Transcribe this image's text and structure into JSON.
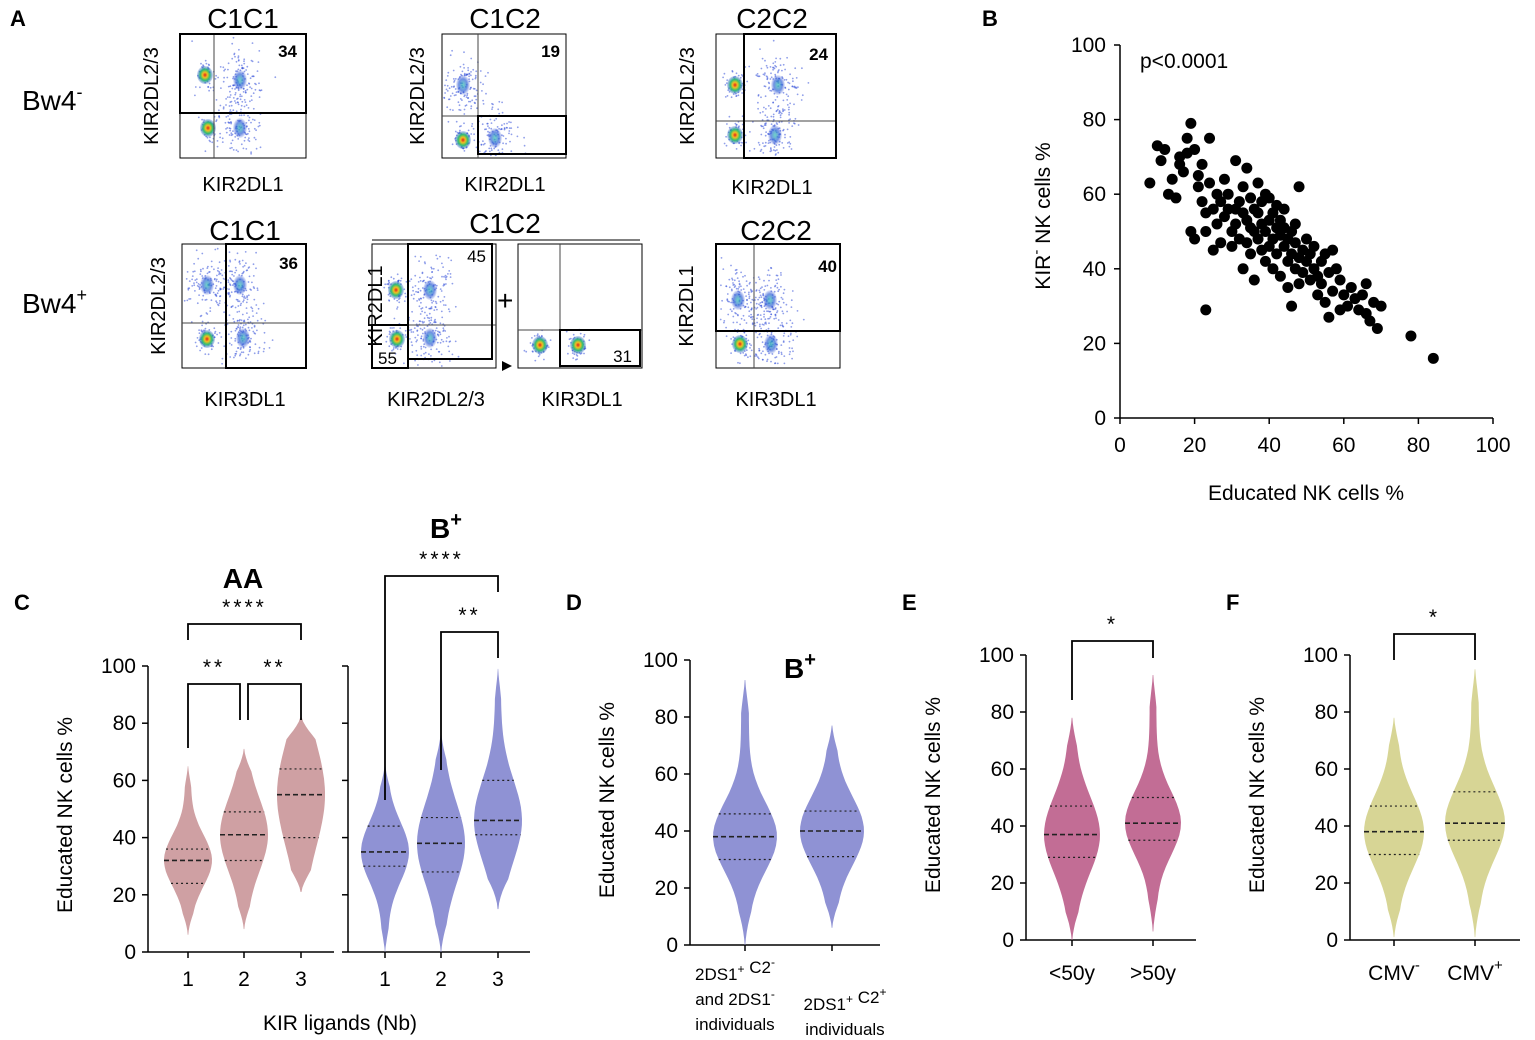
{
  "panels": {
    "A": "A",
    "B": "B",
    "C": "C",
    "D": "D",
    "E": "E",
    "F": "F"
  },
  "colors": {
    "pink": "#cfa0a3",
    "blue": "#8f92d4",
    "magenta": "#c26d95",
    "olive": "#d7d595"
  },
  "flow": {
    "row1_label": "Bw4",
    "row1_sup": "-",
    "row2_label": "Bw4",
    "row2_sup": "+",
    "plots": [
      {
        "title": "C1C1",
        "ylabel": "KIR2DL2/3",
        "xlabel": "KIR2DL1",
        "value": "34"
      },
      {
        "title": "C1C2",
        "ylabel": "KIR2DL2/3",
        "xlabel": "KIR2DL1",
        "value": "19"
      },
      {
        "title": "C2C2",
        "ylabel": "KIR2DL2/3",
        "xlabel": "KIR2DL1",
        "value": "24"
      },
      {
        "title": "C1C1",
        "ylabel": "KIR2DL2/3",
        "xlabel": "KIR3DL1",
        "value": "36"
      },
      {
        "title": "C1C2",
        "ylabel": "KIR2DL1",
        "xlabel": "KIR2DL2/3",
        "value": "45",
        "value2": "55"
      },
      {
        "title": "",
        "ylabel": "",
        "xlabel": "KIR3DL1",
        "value": "31"
      },
      {
        "title": "C2C2",
        "ylabel": "KIR2DL1",
        "xlabel": "KIR3DL1",
        "value": "40"
      }
    ],
    "plus": "+"
  },
  "chart_data": [
    {
      "panel": "B",
      "type": "scatter",
      "title": "",
      "annotation": "p<0.0001",
      "xlabel": "Educated NK cells %",
      "ylabel_main": "KIR",
      "ylabel_sup": "-",
      "ylabel_rest": " NK cells %",
      "xlim": [
        0,
        100
      ],
      "ylim": [
        0,
        100
      ],
      "xticks": [
        "0",
        "20",
        "40",
        "60",
        "80",
        "100"
      ],
      "yticks": [
        "0",
        "20",
        "40",
        "60",
        "80",
        "100"
      ],
      "points": [
        [
          10,
          73
        ],
        [
          12,
          72
        ],
        [
          13,
          60
        ],
        [
          14,
          64
        ],
        [
          15,
          59
        ],
        [
          16,
          70
        ],
        [
          16,
          68
        ],
        [
          17,
          66
        ],
        [
          18,
          75
        ],
        [
          18,
          71
        ],
        [
          19,
          79
        ],
        [
          19,
          50
        ],
        [
          20,
          48
        ],
        [
          20,
          72
        ],
        [
          21,
          62
        ],
        [
          21,
          65
        ],
        [
          22,
          68
        ],
        [
          22,
          58
        ],
        [
          23,
          55
        ],
        [
          23,
          29
        ],
        [
          23,
          50
        ],
        [
          24,
          75
        ],
        [
          24,
          63
        ],
        [
          25,
          45
        ],
        [
          25,
          56
        ],
        [
          26,
          52
        ],
        [
          26,
          60
        ],
        [
          27,
          58
        ],
        [
          27,
          47
        ],
        [
          28,
          54
        ],
        [
          28,
          64
        ],
        [
          29,
          56
        ],
        [
          29,
          60
        ],
        [
          30,
          50
        ],
        [
          30,
          46
        ],
        [
          31,
          69
        ],
        [
          31,
          56
        ],
        [
          31,
          52
        ],
        [
          32,
          58
        ],
        [
          32,
          48
        ],
        [
          33,
          62
        ],
        [
          33,
          55
        ],
        [
          33,
          40
        ],
        [
          34,
          53
        ],
        [
          34,
          67
        ],
        [
          34,
          47
        ],
        [
          35,
          51
        ],
        [
          35,
          59
        ],
        [
          35,
          44
        ],
        [
          36,
          56
        ],
        [
          36,
          50
        ],
        [
          36,
          37
        ],
        [
          37,
          48
        ],
        [
          37,
          63
        ],
        [
          37,
          55
        ],
        [
          38,
          52
        ],
        [
          38,
          45
        ],
        [
          38,
          58
        ],
        [
          39,
          50
        ],
        [
          39,
          60
        ],
        [
          39,
          42
        ],
        [
          40,
          46
        ],
        [
          40,
          53
        ],
        [
          40,
          59
        ],
        [
          41,
          48
        ],
        [
          41,
          55
        ],
        [
          41,
          40
        ],
        [
          42,
          51
        ],
        [
          42,
          57
        ],
        [
          42,
          44
        ],
        [
          43,
          49
        ],
        [
          43,
          53
        ],
        [
          43,
          38
        ],
        [
          44,
          46
        ],
        [
          44,
          51
        ],
        [
          44,
          56
        ],
        [
          45,
          42
        ],
        [
          45,
          48
        ],
        [
          45,
          35
        ],
        [
          46,
          50
        ],
        [
          46,
          44
        ],
        [
          46,
          30
        ],
        [
          47,
          47
        ],
        [
          47,
          40
        ],
        [
          47,
          52
        ],
        [
          48,
          62
        ],
        [
          48,
          43
        ],
        [
          48,
          36
        ],
        [
          49,
          45
        ],
        [
          49,
          39
        ],
        [
          50,
          48
        ],
        [
          50,
          42
        ],
        [
          51,
          44
        ],
        [
          51,
          37
        ],
        [
          52,
          40
        ],
        [
          52,
          46
        ],
        [
          53,
          38
        ],
        [
          53,
          33
        ],
        [
          54,
          42
        ],
        [
          54,
          36
        ],
        [
          55,
          44
        ],
        [
          55,
          31
        ],
        [
          56,
          27
        ],
        [
          56,
          39
        ],
        [
          57,
          34
        ],
        [
          57,
          45
        ],
        [
          58,
          40
        ],
        [
          59,
          37
        ],
        [
          59,
          29
        ],
        [
          60,
          33
        ],
        [
          61,
          30
        ],
        [
          62,
          35
        ],
        [
          63,
          32
        ],
        [
          64,
          29
        ],
        [
          65,
          33
        ],
        [
          66,
          28
        ],
        [
          66,
          36
        ],
        [
          67,
          26
        ],
        [
          68,
          31
        ],
        [
          69,
          24
        ],
        [
          70,
          30
        ],
        [
          78,
          22
        ],
        [
          84,
          16
        ],
        [
          8,
          63
        ],
        [
          11,
          69
        ]
      ]
    },
    {
      "panel": "C",
      "type": "violin",
      "groups": [
        {
          "title": "AA",
          "significance": [
            {
              "label": "****",
              "from": "1",
              "to": "3"
            },
            {
              "label": "**",
              "from": "1",
              "to": "2"
            },
            {
              "label": "**",
              "from": "2",
              "to": "3"
            }
          ],
          "categories": [
            "1",
            "2",
            "3"
          ],
          "median": [
            32,
            41,
            55
          ],
          "q1": [
            24,
            32,
            40
          ],
          "q3": [
            36,
            49,
            64
          ],
          "min": [
            6,
            8,
            21
          ],
          "max": [
            65,
            71,
            82
          ]
        },
        {
          "title": "B",
          "title_sup": "+",
          "significance": [
            {
              "label": "****",
              "from": "1",
              "to": "3"
            },
            {
              "label": "**",
              "from": "2",
              "to": "3"
            }
          ],
          "categories": [
            "1",
            "2",
            "3"
          ],
          "median": [
            35,
            38,
            46
          ],
          "q1": [
            30,
            28,
            41
          ],
          "q3": [
            44,
            47,
            60
          ],
          "min": [
            0,
            0,
            15
          ],
          "max": [
            66,
            77,
            99
          ]
        }
      ],
      "xlabel": "KIR ligands (Nb)",
      "ylabel": "Educated NK cells %",
      "ylim": [
        0,
        100
      ],
      "yticks": [
        "0",
        "20",
        "40",
        "60",
        "80",
        "100"
      ]
    },
    {
      "panel": "D",
      "type": "violin",
      "title": "B",
      "title_sup": "+",
      "categories": [
        "2DS1+ C2- and 2DS1- individuals",
        "2DS1+ C2+ individuals"
      ],
      "xtick_lines": [
        [
          "2DS1",
          "+",
          " C2",
          "-"
        ],
        [
          "and 2DS1",
          "-"
        ],
        [
          "individuals",
          ""
        ],
        [
          "2DS1",
          "+",
          " C2",
          "+"
        ],
        [
          "individuals",
          ""
        ]
      ],
      "median": [
        38,
        40
      ],
      "q1": [
        30,
        31
      ],
      "q3": [
        46,
        47
      ],
      "min": [
        0,
        6
      ],
      "max": [
        93,
        77
      ],
      "ylabel": "Educated NK cells %",
      "ylim": [
        0,
        100
      ],
      "yticks": [
        "0",
        "20",
        "40",
        "60",
        "80",
        "100"
      ]
    },
    {
      "panel": "E",
      "type": "violin",
      "significance": [
        {
          "label": "*",
          "from": "<50y",
          "to": ">50y"
        }
      ],
      "categories": [
        "<50y",
        ">50y"
      ],
      "median": [
        37,
        41
      ],
      "q1": [
        29,
        35
      ],
      "q3": [
        47,
        50
      ],
      "min": [
        0,
        3
      ],
      "max": [
        78,
        93
      ],
      "ylabel": "Educated NK cells %",
      "ylim": [
        0,
        100
      ],
      "yticks": [
        "0",
        "20",
        "40",
        "60",
        "80",
        "100"
      ]
    },
    {
      "panel": "F",
      "type": "violin",
      "significance": [
        {
          "label": "*",
          "from": "CMV-",
          "to": "CMV+"
        }
      ],
      "categories": [
        "CMV-",
        "CMV+"
      ],
      "cat_main": [
        "CMV",
        "CMV"
      ],
      "cat_sup": [
        "-",
        "+"
      ],
      "median": [
        38,
        41
      ],
      "q1": [
        30,
        35
      ],
      "q3": [
        47,
        52
      ],
      "min": [
        1,
        1
      ],
      "max": [
        78,
        95
      ],
      "ylabel": "Educated NK cells %",
      "ylim": [
        0,
        100
      ],
      "yticks": [
        "0",
        "20",
        "40",
        "60",
        "80",
        "100"
      ]
    }
  ]
}
